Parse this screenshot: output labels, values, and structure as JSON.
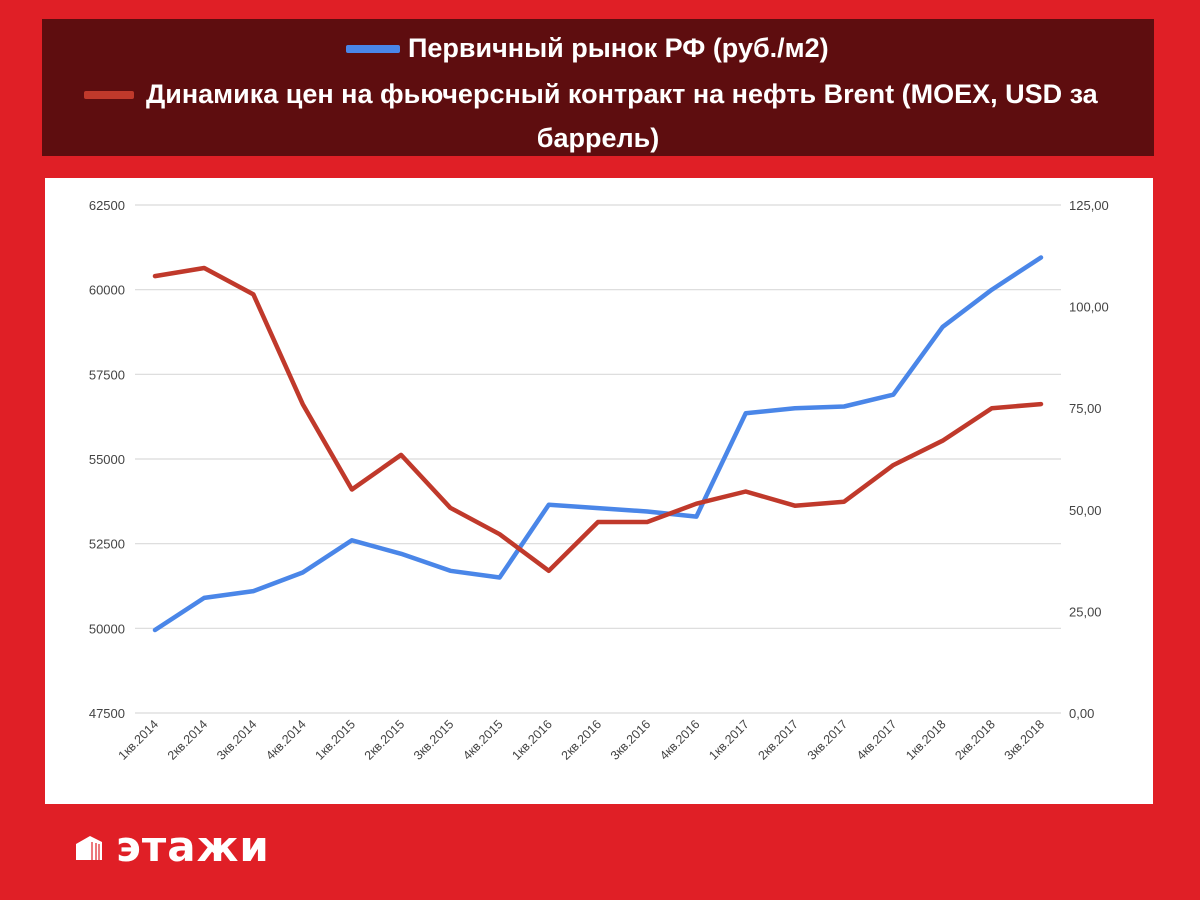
{
  "colors": {
    "background": "#e01f26",
    "legend_bg": "#5e0d0f",
    "series_blue": "#4a86e8",
    "series_red": "#c0392b"
  },
  "legend": {
    "items": [
      {
        "label": "Первичный рынок РФ (руб./м2)",
        "color": "#4a86e8"
      },
      {
        "label_line1": "Динамика цен на фьючерсный контракт на нефть Brent (MOEX, USD за",
        "label_line2": "баррель)",
        "color": "#c0392b"
      }
    ]
  },
  "chart_data": {
    "type": "line",
    "categories": [
      "1кв.2014",
      "2кв.2014",
      "3кв.2014",
      "4кв.2014",
      "1кв.2015",
      "2кв.2015",
      "3кв.2015",
      "4кв.2015",
      "1кв.2016",
      "2кв.2016",
      "3кв.2016",
      "4кв.2016",
      "1кв.2017",
      "2кв.2017",
      "3кв.2017",
      "4кв.2017",
      "1кв.2018",
      "2кв.2018",
      "3кв.2018"
    ],
    "y_left": {
      "ticks": [
        "62500",
        "60000",
        "57500",
        "55000",
        "52500",
        "50000",
        "47500"
      ],
      "range": [
        47500,
        62500
      ]
    },
    "y_right": {
      "ticks": [
        "125,00",
        "100,00",
        "75,00",
        "50,00",
        "25,00",
        "0,00"
      ],
      "range": [
        0,
        125
      ]
    },
    "series": [
      {
        "name": "Первичный рынок РФ (руб./м2)",
        "axis": "left",
        "color": "#4a86e8",
        "values": [
          49950,
          50900,
          51100,
          51650,
          52600,
          52200,
          51700,
          51500,
          53650,
          53550,
          53450,
          53300,
          56350,
          56500,
          56550,
          56900,
          58900,
          60000,
          60950
        ]
      },
      {
        "name": "Динамика цен на фьючерсный контракт на нефть Brent (MOEX, USD за баррель)",
        "axis": "right",
        "color": "#c0392b",
        "values": [
          107.5,
          109.5,
          103,
          76,
          55,
          63.5,
          50.5,
          44,
          35,
          47,
          47,
          51.5,
          54.5,
          51,
          52,
          61,
          67,
          75,
          76
        ]
      }
    ],
    "grid": true
  },
  "logo": {
    "text": "этажи",
    "icon": "building-icon"
  }
}
